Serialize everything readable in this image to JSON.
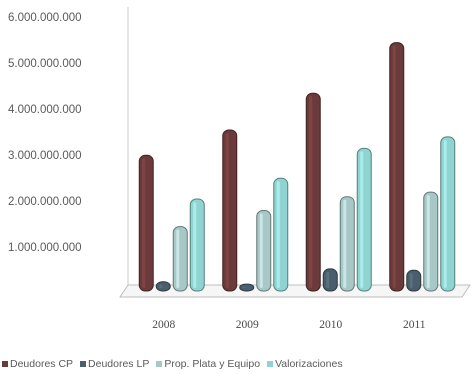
{
  "chart_data": {
    "type": "bar",
    "categories": [
      "2008",
      "2009",
      "2010",
      "2011"
    ],
    "series": [
      {
        "name": "Deudores CP",
        "values": [
          2950000000,
          3500000000,
          4300000000,
          5400000000
        ],
        "color": "#6b3a3a"
      },
      {
        "name": "Deudores LP",
        "values": [
          200000000,
          150000000,
          480000000,
          450000000
        ],
        "color": "#4a5e6b"
      },
      {
        "name": "Prop. Plata y Equipo",
        "values": [
          1400000000,
          1750000000,
          2050000000,
          2150000000
        ],
        "color": "#a8c7c7"
      },
      {
        "name": "Valorizaciones",
        "values": [
          2000000000,
          2450000000,
          3100000000,
          3350000000
        ],
        "color": "#8fd4d0"
      }
    ],
    "y_ticks": [
      "6.000.000.000",
      "5.000.000.000",
      "4.000.000.000",
      "3.000.000.000",
      "2.000.000.000",
      "1.000.000.000"
    ],
    "ylim": [
      0,
      6000000000
    ],
    "legend_position": "bottom",
    "grid": false
  }
}
